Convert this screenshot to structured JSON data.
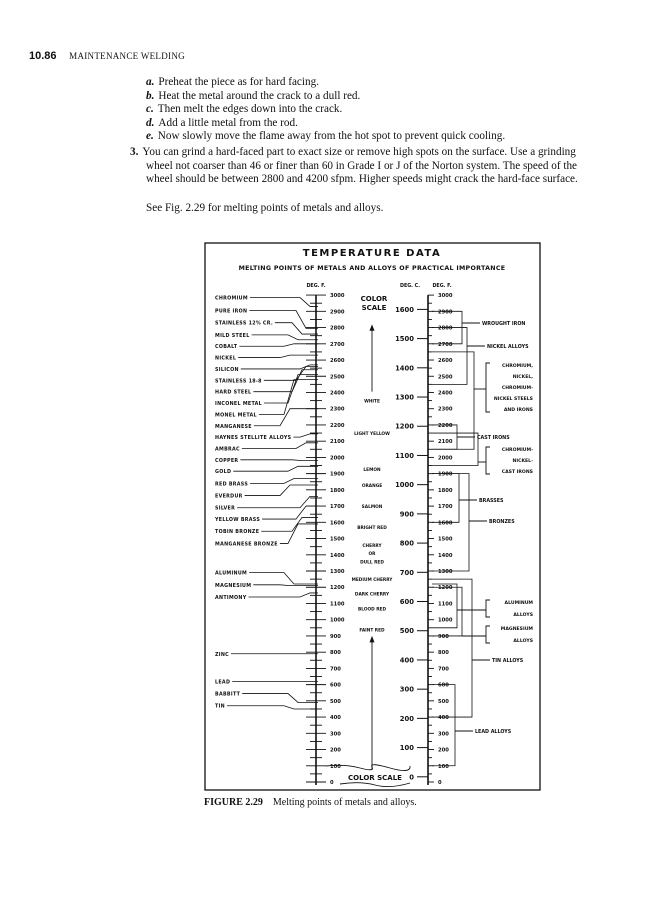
{
  "header": {
    "page_number": "10.86",
    "running_title": "MAINTENANCE WELDING"
  },
  "steps": [
    {
      "letter": "a.",
      "text": "Preheat the piece as for hard facing."
    },
    {
      "letter": "b.",
      "text": "Heat the metal around the crack to a dull red."
    },
    {
      "letter": "c.",
      "text": "Then melt the edges down into the crack."
    },
    {
      "letter": "d.",
      "text": "Add a little metal from the rod."
    },
    {
      "letter": "e.",
      "text": "Now slowly move the flame away from the hot spot to prevent quick cooling."
    }
  ],
  "item3": {
    "number": "3.",
    "lines": [
      "You can grind a hard-faced part to exact size or remove high spots on the surface. Use a grinding",
      "wheel not coarser than 46 or finer than 60 in Grade I or J of the Norton system. The speed of the",
      "wheel should be between 2800 and 4200 sfpm. Higher speeds might crack the hard-face surface."
    ]
  },
  "see_fig": "See Fig. 2.29 for melting points of metals and alloys.",
  "figure": {
    "title": "TEMPERATURE DATA",
    "subtitle": "MELTING POINTS OF METALS AND ALLOYS OF PRACTICAL IMPORTANCE",
    "left_axis_label": "DEG. F.",
    "right_axis_label_c": "DEG. C.",
    "right_axis_label_f": "DEG. F.",
    "f_ticks": [
      "3000",
      "2900",
      "2800",
      "2700",
      "2600",
      "2500",
      "2400",
      "2300",
      "2200",
      "2100",
      "2000",
      "1900",
      "1800",
      "1700",
      "1600",
      "1500",
      "1400",
      "1300",
      "1200",
      "1100",
      "1000",
      "900",
      "800",
      "700",
      "600",
      "500",
      "400",
      "300",
      "200",
      "100",
      "0"
    ],
    "c_ticks": [
      "1600",
      "1500",
      "1400",
      "1300",
      "1200",
      "1100",
      "1000",
      "900",
      "800",
      "700",
      "600",
      "500",
      "400",
      "300",
      "200",
      "100",
      "0"
    ],
    "color_scale_top": "COLOR SCALE",
    "color_scale_bottom": "COLOR SCALE",
    "colors": [
      {
        "name": "WHITE",
        "deg_f": 2350
      },
      {
        "name": "LIGHT YELLOW",
        "deg_f": 2150
      },
      {
        "name": "LEMON",
        "deg_f": 1930
      },
      {
        "name": "ORANGE",
        "deg_f": 1830
      },
      {
        "name": "SALMON",
        "deg_f": 1700
      },
      {
        "name": "BRIGHT RED",
        "deg_f": 1570
      },
      {
        "name": "CHERRY",
        "deg_f": 1460
      },
      {
        "name": "OR",
        "deg_f": 1410
      },
      {
        "name": "DULL RED",
        "deg_f": 1360
      },
      {
        "name": "MEDIUM CHERRY",
        "deg_f": 1250
      },
      {
        "name": "DARK CHERRY",
        "deg_f": 1160
      },
      {
        "name": "BLOOD RED",
        "deg_f": 1070
      },
      {
        "name": "FAINT RED",
        "deg_f": 940
      }
    ],
    "metals": [
      {
        "name": "CHROMIUM",
        "deg_f": 2930,
        "label_deg_f": 2985
      },
      {
        "name": "PURE IRON",
        "deg_f": 2795,
        "label_deg_f": 2905
      },
      {
        "name": "STAINLESS 12% CR.",
        "deg_f": 2760,
        "label_deg_f": 2830
      },
      {
        "name": "MILD STEEL",
        "deg_f": 2725,
        "label_deg_f": 2755
      },
      {
        "name": "COBALT",
        "deg_f": 2700,
        "label_deg_f": 2685
      },
      {
        "name": "NICKEL",
        "deg_f": 2630,
        "label_deg_f": 2615
      },
      {
        "name": "SILICON",
        "deg_f": 2570,
        "label_deg_f": 2545
      },
      {
        "name": "STAINLESS 18-8",
        "deg_f": 2560,
        "label_deg_f": 2475
      },
      {
        "name": "HARD STEEL",
        "deg_f": 2540,
        "label_deg_f": 2405
      },
      {
        "name": "INCONEL METAL",
        "deg_f": 2510,
        "label_deg_f": 2335
      },
      {
        "name": "MONEL METAL",
        "deg_f": 2480,
        "label_deg_f": 2265
      },
      {
        "name": "MANGANESE",
        "deg_f": 2300,
        "label_deg_f": 2195
      },
      {
        "name": "HAYNES STELLITE ALLOYS",
        "deg_f": 2145,
        "label_deg_f": 2125
      },
      {
        "name": "AMBRAC",
        "deg_f": 2090,
        "label_deg_f": 2055
      },
      {
        "name": "COPPER",
        "deg_f": 1980,
        "label_deg_f": 1985
      },
      {
        "name": "GOLD",
        "deg_f": 1945,
        "label_deg_f": 1915
      },
      {
        "name": "RED BRASS",
        "deg_f": 1870,
        "label_deg_f": 1840
      },
      {
        "name": "EVERDUR",
        "deg_f": 1830,
        "label_deg_f": 1765
      },
      {
        "name": "SILVER",
        "deg_f": 1760,
        "label_deg_f": 1690
      },
      {
        "name": "YELLOW BRASS",
        "deg_f": 1700,
        "label_deg_f": 1620
      },
      {
        "name": "TOBIN BRONZE",
        "deg_f": 1630,
        "label_deg_f": 1545
      },
      {
        "name": "MANGANESE BRONZE",
        "deg_f": 1590,
        "label_deg_f": 1470
      },
      {
        "name": "ALUMINUM",
        "deg_f": 1220,
        "label_deg_f": 1290
      },
      {
        "name": "MAGNESIUM",
        "deg_f": 1210,
        "label_deg_f": 1215
      },
      {
        "name": "ANTIMONY",
        "deg_f": 1165,
        "label_deg_f": 1140
      },
      {
        "name": "ZINC",
        "deg_f": 790,
        "label_deg_f": 790
      },
      {
        "name": "LEAD",
        "deg_f": 620,
        "label_deg_f": 620
      },
      {
        "name": "BABBITT",
        "deg_f": 490,
        "label_deg_f": 545
      },
      {
        "name": "TIN",
        "deg_f": 450,
        "label_deg_f": 470
      }
    ],
    "alloy_groups": [
      {
        "lines": [
          "WROUGHT IRON"
        ],
        "range_f": [
          2900,
          2700
        ]
      },
      {
        "lines": [
          "NICKEL ALLOYS"
        ],
        "range_f": [
          2800,
          2450
        ]
      },
      {
        "lines": [
          "CHROMIUM,",
          "NICKEL,",
          "CHROMIUM-",
          "NICKEL STEELS",
          "AND IRONS"
        ],
        "range_f": [
          2650,
          2050
        ]
      },
      {
        "lines": [
          "CAST IRONS"
        ],
        "range_f": [
          2200,
          2050
        ]
      },
      {
        "lines": [
          "CHROMIUM-",
          "NICKEL-",
          "CAST IRONS"
        ],
        "range_f": [
          2150,
          1950
        ]
      },
      {
        "lines": [
          "BRASSES"
        ],
        "range_f": [
          1900,
          1600
        ]
      },
      {
        "lines": [
          "BRONZES"
        ],
        "range_f": [
          1900,
          1300
        ]
      },
      {
        "lines": [
          "ALUMINUM",
          "ALLOYS"
        ],
        "range_f": [
          1220,
          950
        ]
      },
      {
        "lines": [
          "MAGNESIUM",
          "ALLOYS"
        ],
        "range_f": [
          1200,
          900
        ]
      },
      {
        "lines": [
          "TIN ALLOYS"
        ],
        "range_f": [
          1250,
          400
        ]
      },
      {
        "lines": [
          "LEAD ALLOYS"
        ],
        "range_f": [
          600,
          100
        ]
      }
    ]
  },
  "caption": {
    "label": "FIGURE 2.29",
    "text": "Melting points of metals and alloys."
  }
}
